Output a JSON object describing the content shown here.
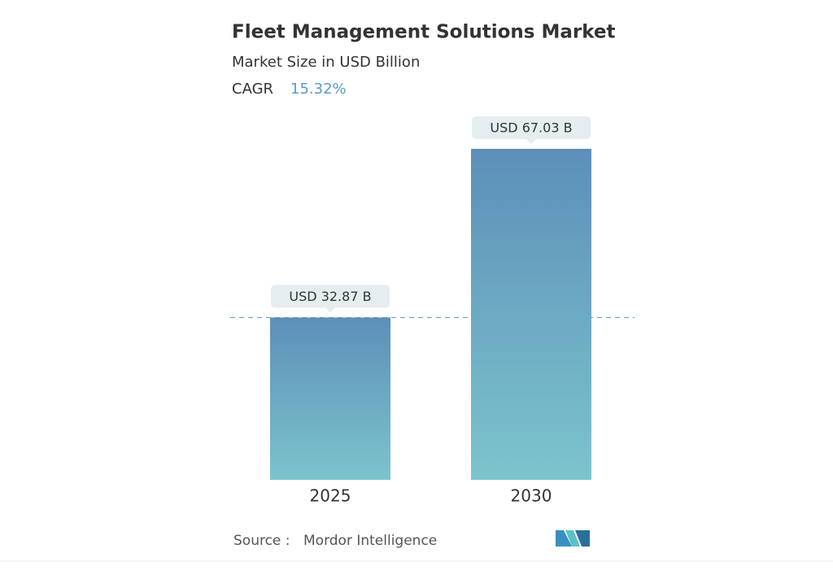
{
  "chart_data": {
    "type": "bar",
    "title": "Fleet Management Solutions Market",
    "subtitle": "Market Size in USD Billion",
    "cagr_label": "CAGR",
    "cagr_value": "15.32%",
    "categories": [
      "2025",
      "2030"
    ],
    "values": [
      32.87,
      67.03
    ],
    "value_labels": [
      "USD 32.87 B",
      "USD 67.03 B"
    ],
    "color_top": "#5d8fb9",
    "color_bottom": "#7cc4cc",
    "source_label": "Source :",
    "source": "Mordor Intelligence"
  }
}
